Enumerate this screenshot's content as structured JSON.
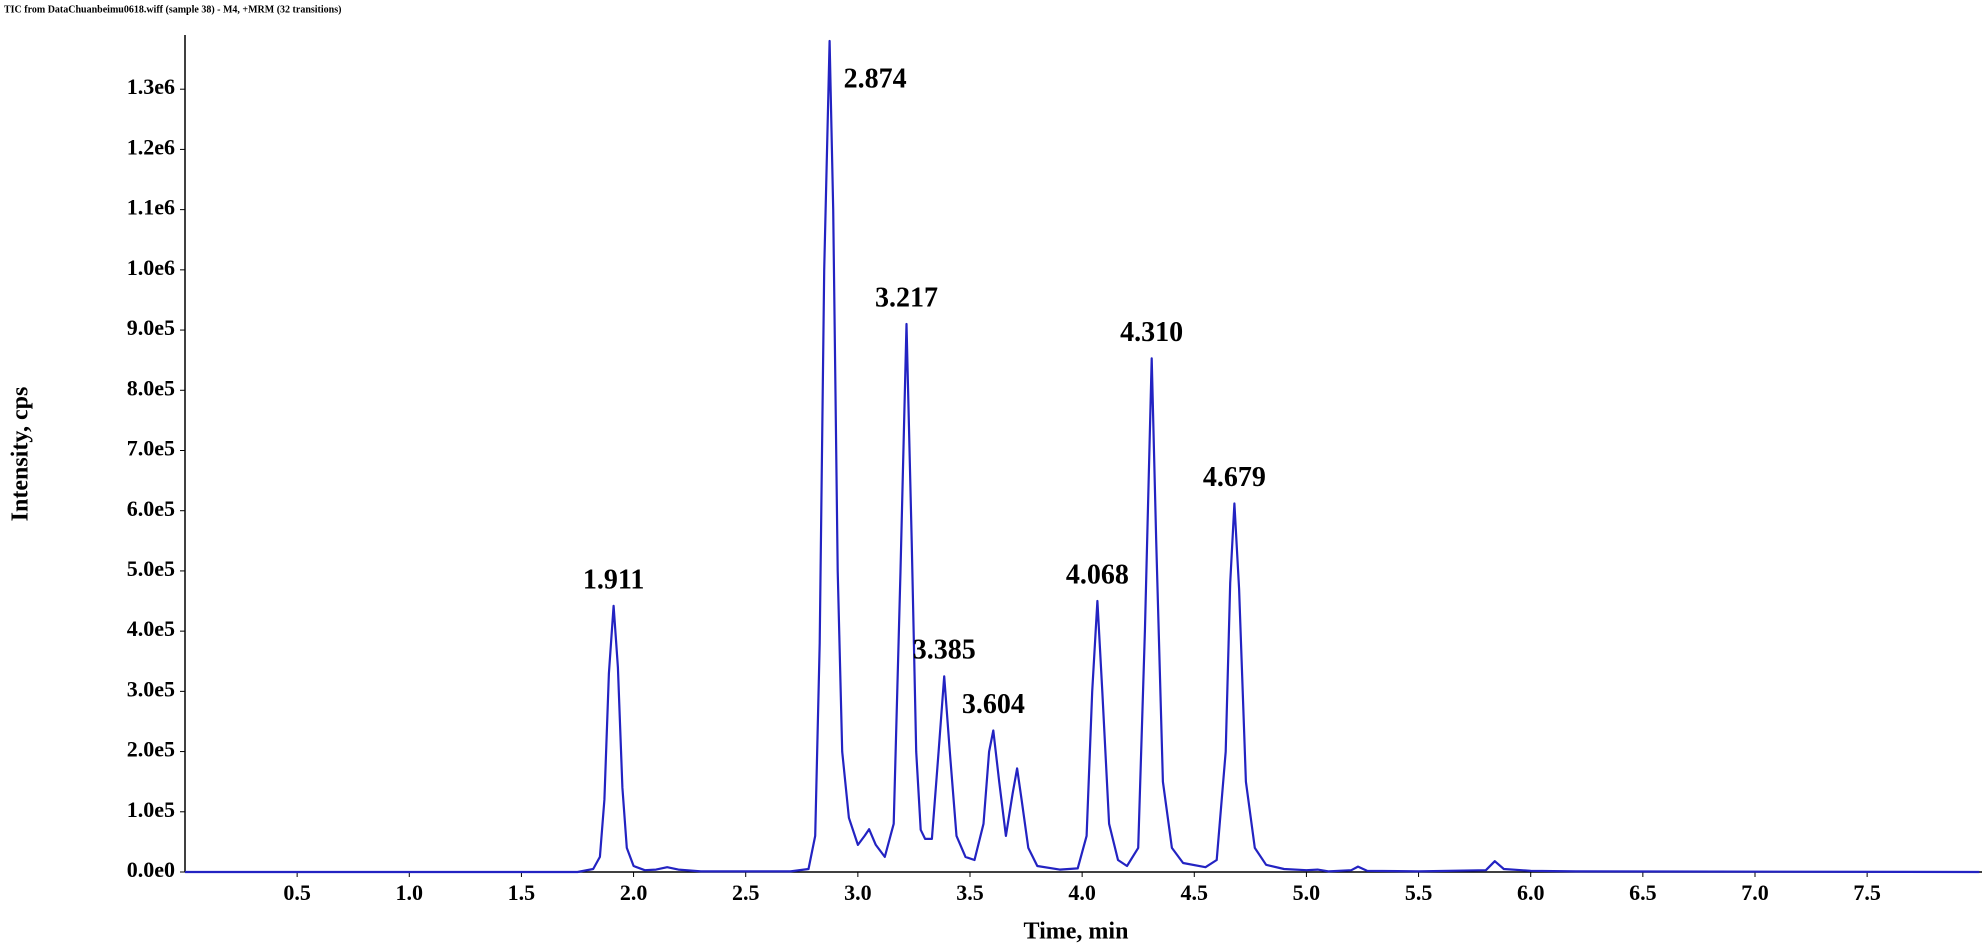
{
  "chart_data": {
    "type": "line",
    "title": "TIC from DataChuanbeimu0618.wiff (sample 38) - M4, +MRM (32 transitions)",
    "x_label": "Time, min",
    "y_label": "Intensity, cps",
    "color": "#2323c2",
    "xlim": [
      0,
      8
    ],
    "ylim": [
      0,
      1390000
    ],
    "xticks": [
      0.5,
      {
        "value": 1,
        "label": "1.0"
      },
      1.5,
      {
        "value": 2,
        "label": "2.0"
      },
      2.5,
      {
        "value": 3,
        "label": "3.0"
      },
      3.5,
      {
        "value": 4,
        "label": "4.0"
      },
      4.5,
      {
        "value": 5,
        "label": "5.0"
      },
      5.5,
      {
        "value": 6,
        "label": "6.0"
      },
      6.5,
      {
        "value": 7,
        "label": "7.0"
      },
      7.5
    ],
    "yticks": [
      {
        "value": 0,
        "label": "0.0e0"
      },
      {
        "value": 100000,
        "label": "1.0e5"
      },
      {
        "value": 200000,
        "label": "2.0e5"
      },
      {
        "value": 300000,
        "label": "3.0e5"
      },
      {
        "value": 400000,
        "label": "4.0e5"
      },
      {
        "value": 500000,
        "label": "5.0e5"
      },
      {
        "value": 600000,
        "label": "6.0e5"
      },
      {
        "value": 700000,
        "label": "7.0e5"
      },
      {
        "value": 800000,
        "label": "8.0e5"
      },
      {
        "value": 900000,
        "label": "9.0e5"
      },
      {
        "value": 1000000,
        "label": "1.0e6"
      },
      {
        "value": 1100000,
        "label": "1.1e6"
      },
      {
        "value": 1200000,
        "label": "1.2e6"
      },
      {
        "value": 1300000,
        "label": "1.3e6"
      }
    ],
    "x": [
      0,
      1.75,
      1.82,
      1.85,
      1.87,
      1.89,
      1.911,
      1.93,
      1.95,
      1.97,
      2.0,
      2.05,
      2.1,
      2.15,
      2.2,
      2.3,
      2.7,
      2.78,
      2.81,
      2.83,
      2.85,
      2.874,
      2.89,
      2.91,
      2.93,
      2.96,
      3.0,
      3.03,
      3.05,
      3.08,
      3.12,
      3.16,
      3.19,
      3.217,
      3.24,
      3.26,
      3.28,
      3.3,
      3.33,
      3.36,
      3.385,
      3.41,
      3.44,
      3.48,
      3.52,
      3.56,
      3.585,
      3.604,
      3.63,
      3.66,
      3.69,
      3.71,
      3.73,
      3.76,
      3.8,
      3.9,
      3.98,
      4.02,
      4.045,
      4.068,
      4.09,
      4.12,
      4.16,
      4.2,
      4.25,
      4.28,
      4.31,
      4.33,
      4.36,
      4.4,
      4.45,
      4.55,
      4.6,
      4.64,
      4.66,
      4.679,
      4.7,
      4.73,
      4.77,
      4.82,
      4.9,
      5.0,
      5.05,
      5.1,
      5.2,
      5.23,
      5.27,
      5.5,
      5.8,
      5.84,
      5.88,
      6.0,
      6.2,
      8.0
    ],
    "values": [
      0,
      0,
      5000,
      25000,
      120000,
      330000,
      442000,
      340000,
      140000,
      40000,
      10000,
      3000,
      4000,
      8000,
      4000,
      1000,
      1000,
      5000,
      60000,
      380000,
      1000000,
      1380000,
      1100000,
      500000,
      200000,
      90000,
      45000,
      60000,
      71000,
      45000,
      25000,
      80000,
      500000,
      910000,
      550000,
      200000,
      70000,
      55000,
      55000,
      200000,
      325000,
      200000,
      60000,
      25000,
      20000,
      80000,
      200000,
      235000,
      150000,
      60000,
      130000,
      172000,
      120000,
      40000,
      10000,
      4000,
      6000,
      60000,
      300000,
      450000,
      300000,
      80000,
      20000,
      10000,
      40000,
      400000,
      853000,
      550000,
      150000,
      40000,
      15000,
      8000,
      20000,
      200000,
      480000,
      612000,
      470000,
      150000,
      40000,
      12000,
      5000,
      3000,
      4000,
      1000,
      3000,
      9000,
      2000,
      1000,
      3000,
      18000,
      5000,
      2000,
      1000,
      0
    ],
    "annotations": [
      {
        "text": "1.911",
        "x": 1.911,
        "y": 442000
      },
      {
        "text": "2.874",
        "x": 2.874,
        "y": 1380000
      },
      {
        "text": "3.217",
        "x": 3.217,
        "y": 910000
      },
      {
        "text": "3.385",
        "x": 3.385,
        "y": 325000
      },
      {
        "text": "3.604",
        "x": 3.604,
        "y": 235000
      },
      {
        "text": "4.068",
        "x": 4.068,
        "y": 450000
      },
      {
        "text": "4.310",
        "x": 4.31,
        "y": 853000
      },
      {
        "text": "4.679",
        "x": 4.679,
        "y": 612000
      }
    ]
  }
}
